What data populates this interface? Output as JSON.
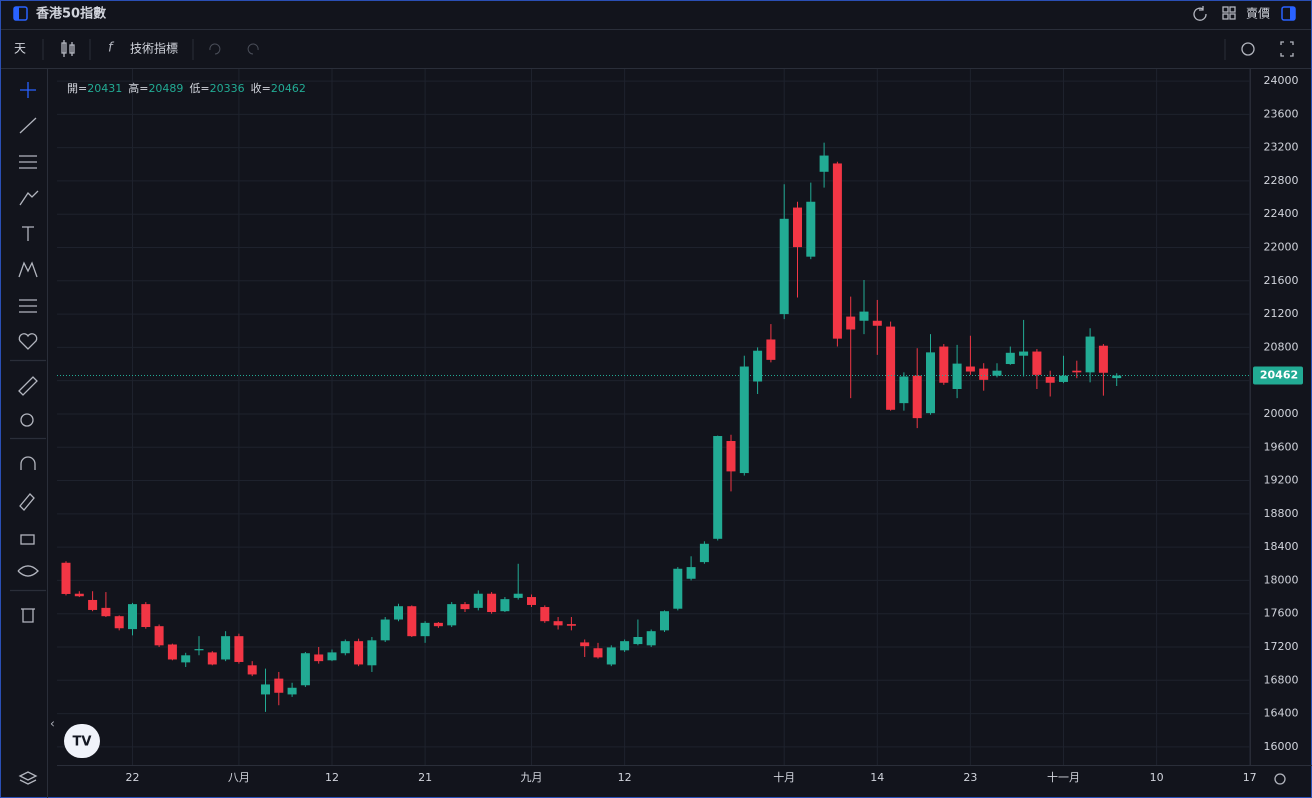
{
  "header": {
    "title": "香港50指數",
    "price_type": "賣價"
  },
  "toolbar": {
    "interval": "天",
    "indicators": "技術指標"
  },
  "legend": {
    "open": "開=",
    "high": "高=",
    "low": "低=",
    "close": "收="
  },
  "chart_data": {
    "type": "candlestick",
    "categories": [
      null,
      null,
      null,
      null,
      null,
      "22",
      null,
      null,
      null,
      null,
      null,
      null,
      null,
      "八月",
      null,
      null,
      null,
      null,
      null,
      null,
      "12",
      null,
      null,
      null,
      null,
      null,
      null,
      "21",
      null,
      null,
      null,
      null,
      null,
      null,
      null,
      "九月",
      null,
      null,
      null,
      null,
      null,
      null,
      "12",
      null,
      null,
      null,
      null,
      null,
      null,
      null,
      null,
      null,
      null,
      null,
      "十月",
      null,
      null,
      null,
      null,
      null,
      null,
      "14",
      null,
      null,
      null,
      null,
      null,
      null,
      "23",
      null,
      null,
      null,
      null,
      null,
      null,
      "十一月",
      null,
      null,
      null,
      null,
      null,
      null,
      "10",
      null,
      null,
      null,
      null,
      null,
      null,
      "17"
    ],
    "open": [
      18212,
      17840,
      17765,
      17670,
      17570,
      17415,
      17715,
      17450,
      17230,
      17015,
      17160,
      17135,
      17050,
      17330,
      16980,
      16630,
      16820,
      16630,
      16740,
      17110,
      17040,
      17125,
      17270,
      16980,
      17280,
      17530,
      17690,
      17330,
      17490,
      17460,
      17715,
      17670,
      17840,
      17630,
      17790,
      17800,
      17680,
      17510,
      17475,
      17255,
      17185,
      16990,
      17160,
      17235,
      17220,
      17400,
      17660,
      18020,
      18220,
      18500,
      19675,
      19290,
      20390,
      20895,
      21200,
      22480,
      21890,
      22910,
      23010,
      21170,
      21120,
      21120,
      21050,
      20130,
      20460,
      20010,
      20810,
      20300,
      20570,
      20545,
      20460,
      20600,
      20700,
      20750,
      20445,
      20385,
      20520,
      20500,
      20820,
      20431,
      null,
      null,
      null,
      null,
      null,
      null,
      null,
      null,
      null,
      null
    ],
    "high": [
      18230,
      17870,
      17870,
      17860,
      17580,
      17730,
      17740,
      17470,
      17240,
      17130,
      17330,
      17150,
      17390,
      17360,
      17030,
      16940,
      16900,
      16770,
      17140,
      17200,
      17170,
      17290,
      17300,
      17320,
      17560,
      17720,
      17700,
      17510,
      17500,
      17740,
      17740,
      17880,
      17860,
      17800,
      18200,
      17830,
      17700,
      17560,
      17560,
      17290,
      17250,
      17220,
      17290,
      17530,
      17410,
      17640,
      18160,
      18290,
      18470,
      19740,
      19750,
      20700,
      20800,
      21080,
      22760,
      22550,
      22780,
      23260,
      23030,
      21410,
      21610,
      21370,
      21110,
      20500,
      20790,
      20960,
      20840,
      20830,
      20940,
      20610,
      20610,
      20810,
      21130,
      20780,
      20520,
      20700,
      20640,
      21030,
      20840,
      20489,
      null,
      null,
      null,
      null,
      null,
      null,
      null,
      null,
      null,
      null
    ],
    "low": [
      17820,
      17800,
      17630,
      17560,
      17400,
      17340,
      17420,
      17200,
      17040,
      16960,
      17100,
      16980,
      17030,
      17000,
      16850,
      16420,
      16500,
      16600,
      16720,
      17000,
      17030,
      17100,
      16970,
      16900,
      17260,
      17510,
      17320,
      17250,
      17430,
      17440,
      17620,
      17640,
      17600,
      17620,
      17770,
      17680,
      17490,
      17410,
      17400,
      17080,
      17060,
      16970,
      17140,
      17220,
      17200,
      17380,
      17640,
      18000,
      18200,
      18480,
      19070,
      19260,
      20240,
      20620,
      21140,
      21400,
      21860,
      22720,
      20810,
      20190,
      20960,
      20710,
      20040,
      20040,
      19830,
      19990,
      20350,
      20190,
      20470,
      20280,
      20440,
      20590,
      20450,
      20300,
      20210,
      20370,
      20430,
      20380,
      20220,
      20336,
      null,
      null,
      null,
      null,
      null,
      null,
      null,
      null,
      null,
      null
    ],
    "close": [
      17837,
      17810,
      17645,
      17570,
      17425,
      17715,
      17440,
      17220,
      17050,
      17100,
      17175,
      16990,
      17330,
      17020,
      16870,
      16750,
      16650,
      16710,
      17125,
      17030,
      17135,
      17270,
      16990,
      17280,
      17530,
      17690,
      17330,
      17490,
      17450,
      17715,
      17655,
      17840,
      17620,
      17775,
      17840,
      17705,
      17510,
      17460,
      17455,
      17210,
      17075,
      17195,
      17270,
      17320,
      17390,
      17630,
      18140,
      18160,
      18440,
      19735,
      19310,
      20570,
      20760,
      20650,
      22345,
      22005,
      22550,
      23105,
      20905,
      21015,
      21230,
      21060,
      20050,
      20450,
      19950,
      20740,
      20375,
      20605,
      20510,
      20410,
      20520,
      20735,
      20750,
      20470,
      20375,
      20460,
      20500,
      20930,
      20495,
      20462,
      null,
      null,
      null,
      null,
      null,
      null,
      null,
      null,
      null,
      null
    ],
    "up_color": "#22ab94",
    "down_color": "#f23645",
    "ylim": [
      15782,
      24145
    ],
    "yticks": [
      16000,
      16400,
      16800,
      17200,
      17600,
      18000,
      18400,
      18800,
      19200,
      19600,
      20000,
      20400,
      20800,
      21200,
      21600,
      22000,
      22400,
      22800,
      23200,
      23600,
      24000
    ],
    "grid": true
  }
}
